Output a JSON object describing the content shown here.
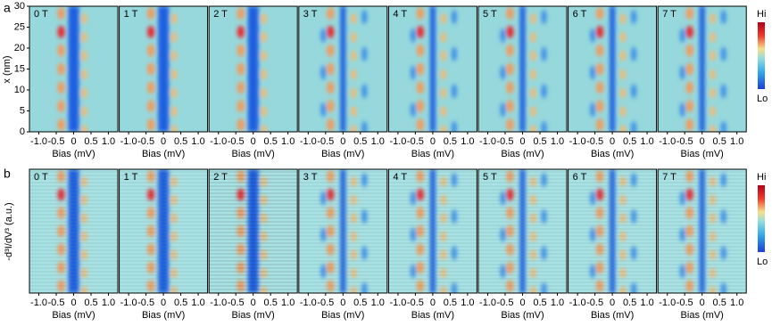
{
  "panel_a": {
    "label": "a",
    "ylabel": "x (nm)",
    "xlabel": "Bias (mV)",
    "ylim": [
      0,
      30
    ],
    "yticks": [
      0,
      5,
      10,
      15,
      20,
      25,
      30
    ],
    "xlim": [
      -1.27,
      1.27
    ],
    "xticks": [
      {
        "value": -1,
        "label": "-1.0"
      },
      {
        "value": -0.5,
        "label": "-0.5"
      },
      0,
      {
        "value": 0.5,
        "label": "0.5"
      },
      {
        "value": 1,
        "label": "1.0"
      }
    ],
    "fields": [
      "0 T",
      "1 T",
      "2 T",
      "3 T",
      "4 T",
      "5 T",
      "6 T",
      "7 T"
    ],
    "colorbar": {
      "high": "Hi",
      "low": "Lo"
    }
  },
  "panel_b": {
    "label": "b",
    "ylabel": "-d³I/dV³ (a.u.)",
    "xlabel": "Bias (mV)",
    "xlim": [
      -1.27,
      1.27
    ],
    "xticks": [
      {
        "value": -1,
        "label": "-1.0"
      },
      {
        "value": -0.5,
        "label": "-0.5"
      },
      0,
      {
        "value": 0.5,
        "label": "0.5"
      },
      {
        "value": 1,
        "label": "1.0"
      }
    ],
    "fields": [
      "0 T",
      "1 T",
      "2 T",
      "3 T",
      "4 T",
      "5 T",
      "6 T",
      "7 T"
    ],
    "colorbar": {
      "high": "Hi",
      "low": "Lo"
    }
  }
}
